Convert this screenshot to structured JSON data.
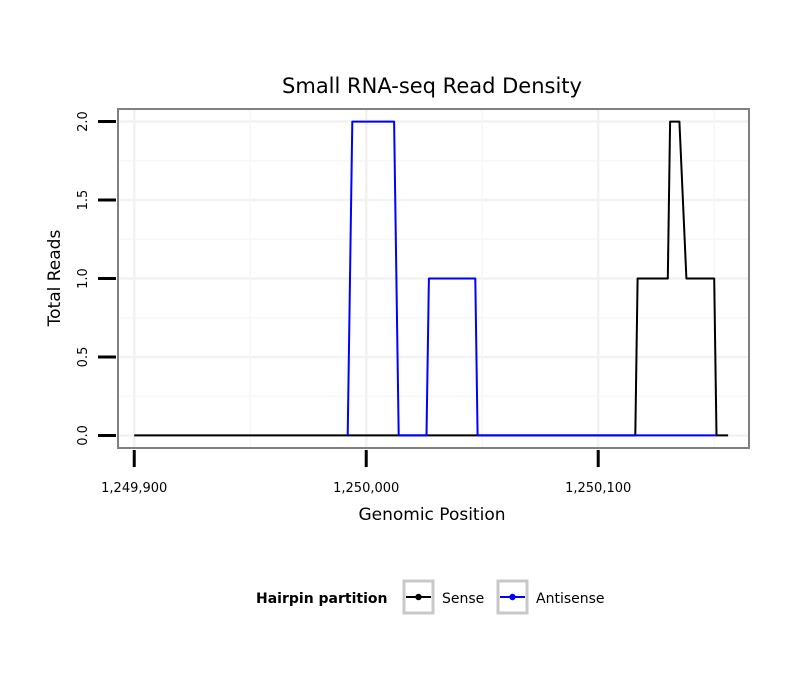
{
  "chart_data": {
    "type": "line",
    "title": "Small RNA-seq Read Density",
    "xlabel": "Genomic Position",
    "ylabel": "Total Reads",
    "xlim": [
      1249893,
      1250165
    ],
    "ylim": [
      -0.08,
      2.08
    ],
    "xticks": [
      1249900,
      1250000,
      1250100
    ],
    "xtick_labels": [
      "1,249,900",
      "1,250,000",
      "1,250,100"
    ],
    "yticks": [
      0,
      0.5,
      1,
      1.5,
      2
    ],
    "ytick_labels": [
      "0.0",
      "0.5",
      "1.0",
      "1.5",
      "2.0"
    ],
    "grid": true,
    "legend_position": "bottom",
    "legend_title": "Hairpin partition",
    "series": [
      {
        "name": "Sense",
        "color": "#000000",
        "x": [
          1249900,
          1250007,
          1250027,
          1250050,
          1250116,
          1250117,
          1250130,
          1250131,
          1250133,
          1250135,
          1250138,
          1250150,
          1250151,
          1250156
        ],
        "y": [
          0,
          0,
          0,
          0,
          0,
          1,
          1,
          2,
          2,
          2,
          1,
          1,
          0,
          0
        ]
      },
      {
        "name": "Antisense",
        "color": "#0000ff",
        "x": [
          1249992,
          1249994,
          1250012,
          1250014,
          1250026,
          1250027,
          1250047,
          1250048,
          1250116,
          1250151
        ],
        "y": [
          0,
          2,
          2,
          0,
          0,
          1,
          1,
          0,
          0,
          0
        ]
      }
    ]
  }
}
